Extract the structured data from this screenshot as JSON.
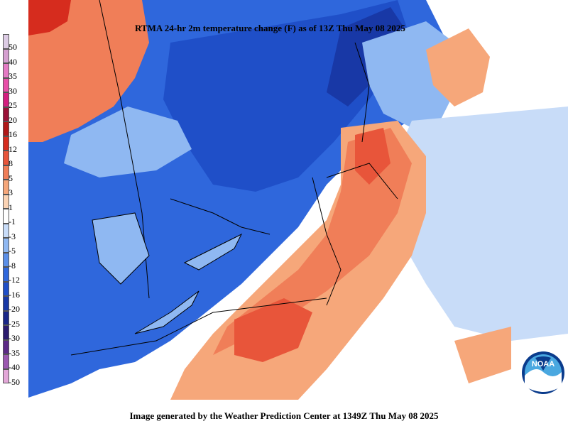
{
  "title": "RTMA 24-hr 2m temperature change (F) as of 13Z Thu May 08 2025",
  "footer": "Image generated by the Weather Prediction Center at 1349Z Thu May 08 2025",
  "logo_text": "NOAA",
  "legend": [
    {
      "label": "50",
      "color": "#dccbe4"
    },
    {
      "label": "40",
      "color": "#d59fd0"
    },
    {
      "label": "35",
      "color": "#e47ac4"
    },
    {
      "label": "30",
      "color": "#e84ea8"
    },
    {
      "label": "25",
      "color": "#d41e80"
    },
    {
      "label": "20",
      "color": "#9a1037"
    },
    {
      "label": "16",
      "color": "#b01818"
    },
    {
      "label": "12",
      "color": "#d62c1e"
    },
    {
      "label": "8",
      "color": "#e8553a"
    },
    {
      "label": "5",
      "color": "#f07e58"
    },
    {
      "label": "3",
      "color": "#f6a77a"
    },
    {
      "label": "1",
      "color": "#fbd3b4"
    },
    {
      "label": "-1",
      "color": "#ffffff"
    },
    {
      "label": "-3",
      "color": "#c8dcf8"
    },
    {
      "label": "-5",
      "color": "#8fb8f2"
    },
    {
      "label": "-8",
      "color": "#5b8fe8"
    },
    {
      "label": "-12",
      "color": "#2f67dc"
    },
    {
      "label": "-16",
      "color": "#1f4fc8"
    },
    {
      "label": "-20",
      "color": "#1838a6"
    },
    {
      "label": "-25",
      "color": "#1a2788"
    },
    {
      "label": "-30",
      "color": "#2b1b6e"
    },
    {
      "label": "-35",
      "color": "#5c2a86"
    },
    {
      "label": "-40",
      "color": "#9b58b0"
    },
    {
      "label": "-50",
      "color": "#e3a7d8"
    }
  ],
  "map_colors": {
    "deep_blue": "#1f4fc8",
    "mid_blue": "#2f67dc",
    "light_blue": "#5b8fe8",
    "pale_blue": "#8fb8f2",
    "very_pale_blue": "#c8dcf8",
    "dark_red": "#d62c1e",
    "red": "#e8553a",
    "orange": "#f07e58",
    "light_orange": "#f6a77a",
    "peach": "#fbd3b4",
    "white": "#ffffff"
  }
}
